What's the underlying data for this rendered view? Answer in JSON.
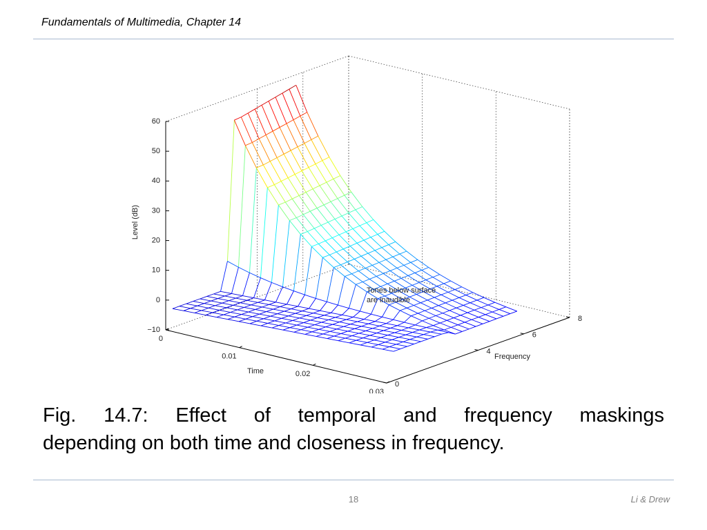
{
  "header": {
    "title": "Fundamentals of Multimedia, Chapter 14"
  },
  "figure": {
    "z_label": "Level (dB)",
    "time_label": "Time",
    "frequency_label": "Frequency",
    "zlim": [
      -10,
      60
    ],
    "zticks": [
      {
        "value": -10,
        "label": "−10"
      },
      0,
      10,
      20,
      30,
      40,
      50,
      60
    ],
    "timelim": [
      0,
      0.03
    ],
    "time_ticks": [
      0,
      0.01,
      0.02,
      0.03
    ],
    "frequencylim": [
      0,
      8
    ],
    "frequency_ticks": [
      0,
      4,
      6,
      8
    ],
    "annotation": [
      "Tones below surface",
      "are inaudible"
    ]
  },
  "caption": {
    "lines": [
      "Fig. 14.7: Effect of temporal and frequency maskings",
      "depending on both time and closeness in frequency."
    ]
  },
  "footer": {
    "page": 18,
    "authors": "Li & Drew"
  }
}
